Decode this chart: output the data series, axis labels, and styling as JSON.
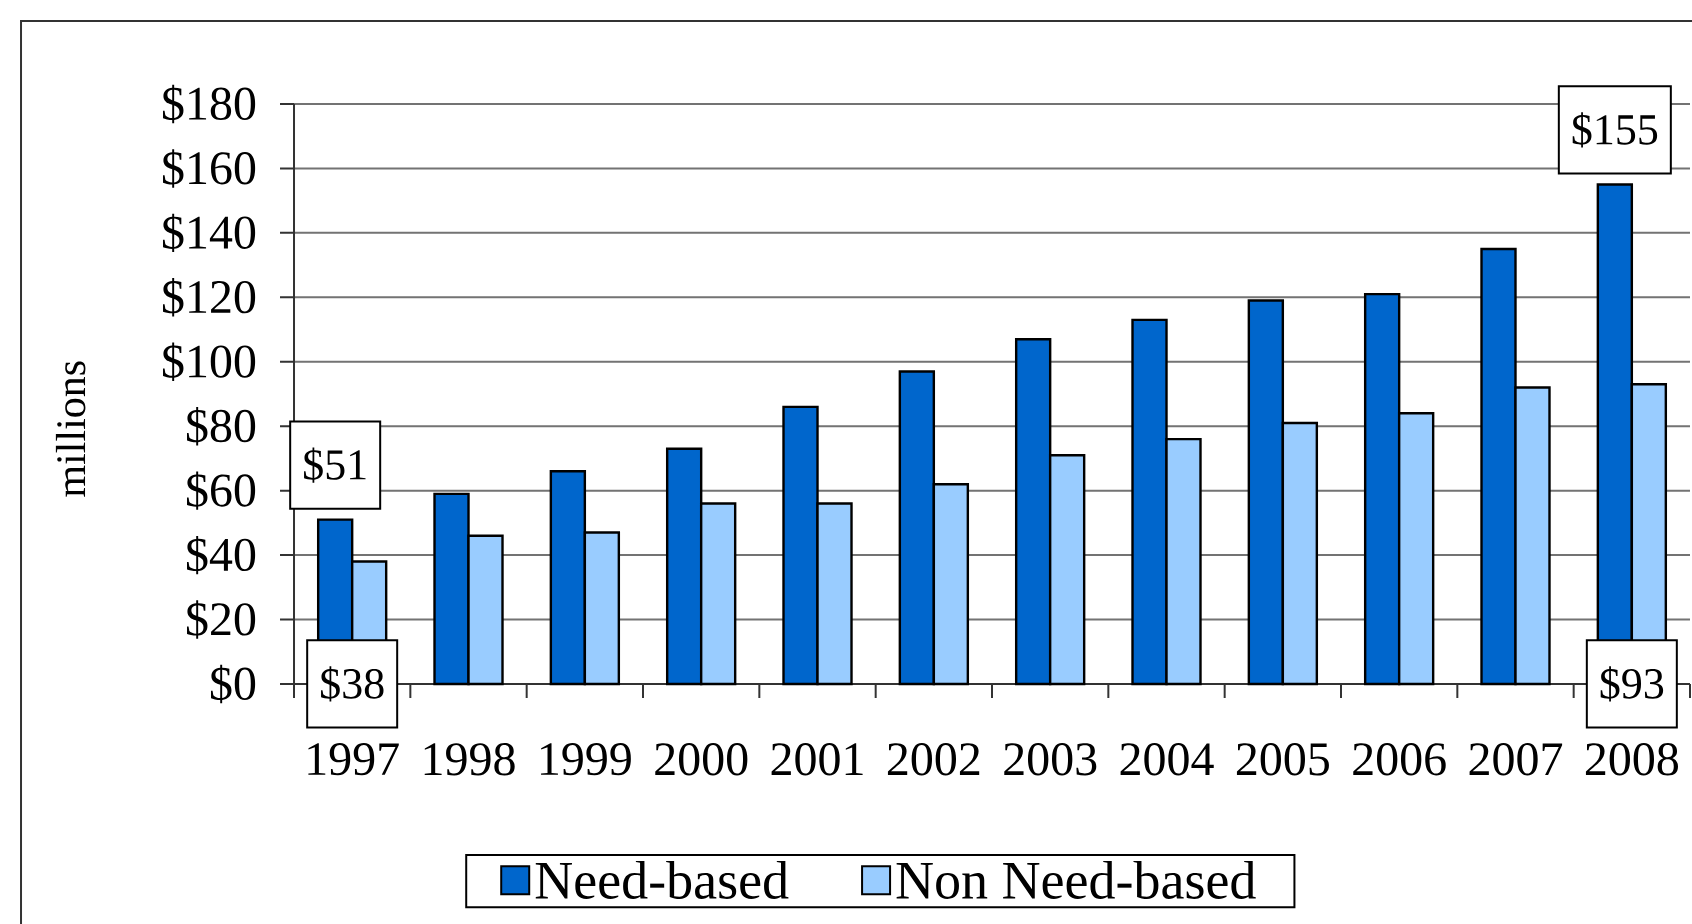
{
  "chart_data": {
    "type": "bar",
    "ylabel": "millions",
    "categories": [
      "1997",
      "1998",
      "1999",
      "2000",
      "2001",
      "2002",
      "2003",
      "2004",
      "2005",
      "2006",
      "2007",
      "2008"
    ],
    "series": [
      {
        "name": "Need-based",
        "color": "#0066cc",
        "values": [
          51,
          59,
          66,
          73,
          86,
          97,
          107,
          113,
          119,
          121,
          135,
          155
        ],
        "value_labels": [
          "$51",
          null,
          null,
          null,
          null,
          null,
          null,
          null,
          null,
          null,
          null,
          "$155"
        ]
      },
      {
        "name": "Non Need-based",
        "color": "#99ccff",
        "values": [
          38,
          46,
          47,
          56,
          56,
          62,
          71,
          76,
          81,
          84,
          92,
          93
        ],
        "value_labels": [
          "$38",
          null,
          null,
          null,
          null,
          null,
          null,
          null,
          null,
          null,
          null,
          "$93"
        ]
      }
    ],
    "ylim": [
      0,
      180
    ],
    "yticks": [
      {
        "value": 0,
        "label": "$0"
      },
      {
        "value": 20,
        "label": "$20"
      },
      {
        "value": 40,
        "label": "$40"
      },
      {
        "value": 60,
        "label": "$60"
      },
      {
        "value": 80,
        "label": "$80"
      },
      {
        "value": 100,
        "label": "$100"
      },
      {
        "value": 120,
        "label": "$120"
      },
      {
        "value": 140,
        "label": "$140"
      },
      {
        "value": 160,
        "label": "$160"
      },
      {
        "value": 180,
        "label": "$180"
      }
    ],
    "grid": "y",
    "legend": "bottom"
  }
}
